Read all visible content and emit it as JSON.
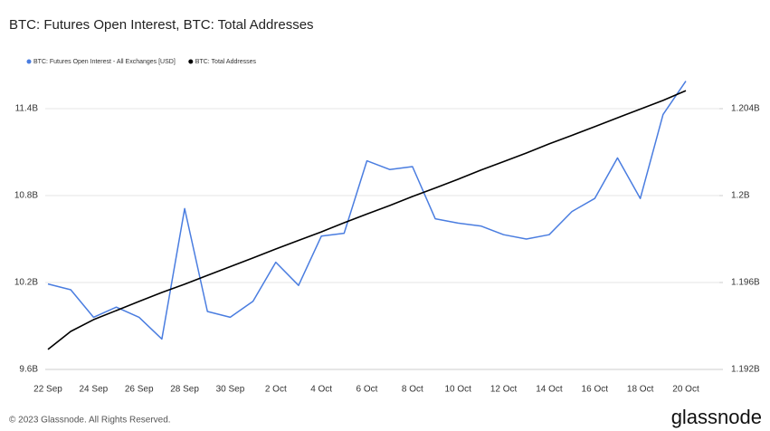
{
  "chart_data": {
    "type": "line",
    "title": "BTC: Futures Open Interest, BTC: Total Addresses",
    "footer": "© 2023 Glassnode. All Rights Reserved.",
    "brand": "glassnode",
    "categories": [
      "22 Sep",
      null,
      "24 Sep",
      null,
      "26 Sep",
      null,
      "28 Sep",
      null,
      "30 Sep",
      null,
      "2 Oct",
      null,
      "4 Oct",
      null,
      "6 Oct",
      null,
      "8 Oct",
      null,
      "10 Oct",
      null,
      "12 Oct",
      null,
      "14 Oct",
      null,
      "16 Oct",
      null,
      "18 Oct",
      null,
      "20 Oct"
    ],
    "series": [
      {
        "name": "BTC: Futures Open Interest - All Exchanges [USD]",
        "color": "#4a7de0",
        "axis": "y",
        "values": [
          10.19,
          10.15,
          9.96,
          10.03,
          9.96,
          9.81,
          10.71,
          10.0,
          9.96,
          10.07,
          10.34,
          10.18,
          10.52,
          10.54,
          11.04,
          10.98,
          11.0,
          10.64,
          10.61,
          10.59,
          10.53,
          10.5,
          10.53,
          10.69,
          10.78,
          11.06,
          10.78,
          11.36,
          11.59
        ]
      },
      {
        "name": "BTC: Total Addresses",
        "color": "#000000",
        "axis": "y2",
        "values": [
          1.19292,
          1.19375,
          1.19429,
          1.19471,
          1.19513,
          1.19554,
          1.19592,
          1.19633,
          1.19673,
          1.19713,
          1.19754,
          1.19794,
          1.19833,
          1.19875,
          1.19915,
          1.19954,
          1.19996,
          1.20035,
          1.20075,
          1.20117,
          1.20156,
          1.20196,
          1.20238,
          1.20277,
          1.20317,
          1.20358,
          1.20398,
          1.20438,
          1.20483
        ]
      }
    ],
    "ylim": [
      9.6,
      11.4
    ],
    "yticks": [
      {
        "value": 9.6,
        "label": "9.6B"
      },
      {
        "value": 10.2,
        "label": "10.2B"
      },
      {
        "value": 10.8,
        "label": "10.8B"
      },
      {
        "value": 11.4,
        "label": "11.4B"
      }
    ],
    "y2lim": [
      1.192,
      1.204
    ],
    "y2ticks": [
      {
        "value": 1.192,
        "label": "1.192B"
      },
      {
        "value": 1.196,
        "label": "1.196B"
      },
      {
        "value": 1.2,
        "label": "1.2B"
      },
      {
        "value": 1.204,
        "label": "1.204B"
      }
    ],
    "grid": true
  }
}
